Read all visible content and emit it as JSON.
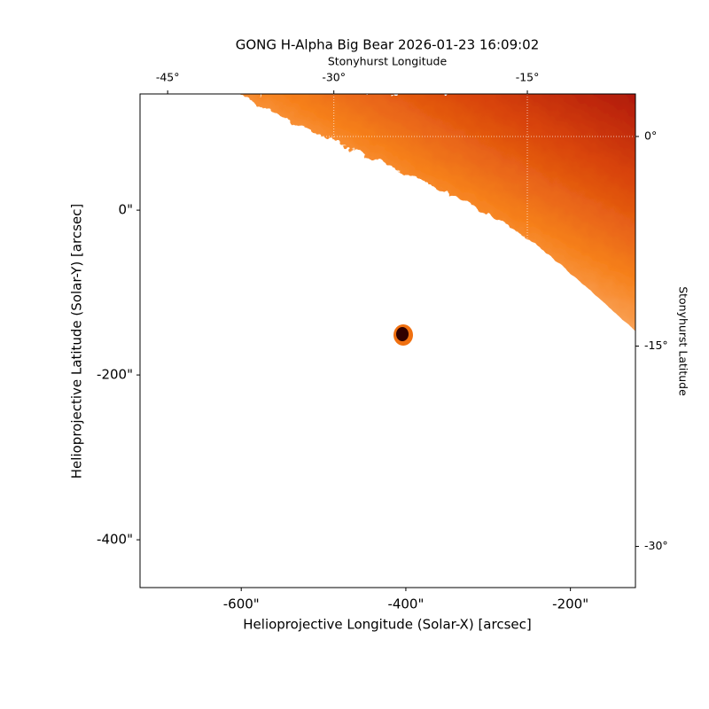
{
  "chart_data": {
    "type": "image",
    "title": "GONG H-Alpha Big Bear 2026-01-23 16:09:02",
    "xlabel": "Helioprojective Longitude (Solar-X) [arcsec]",
    "ylabel": "Helioprojective Latitude (Solar-Y) [arcsec]",
    "x2label": "Stonyhurst Longitude",
    "y2label": "Stonyhurst Latitude",
    "xlim": [
      -723,
      -121
    ],
    "ylim": [
      -458,
      141
    ],
    "xticks": [
      {
        "value": -600,
        "label": "-600\""
      },
      {
        "value": -400,
        "label": "-400\""
      },
      {
        "value": -200,
        "label": "-200\""
      }
    ],
    "yticks": [
      {
        "value": 0,
        "label": "0\""
      },
      {
        "value": -200,
        "label": "-200\""
      },
      {
        "value": -400,
        "label": "-400\""
      }
    ],
    "x2ticks": [
      {
        "value": -45,
        "label": "-45°"
      },
      {
        "value": -30,
        "label": "-30°"
      },
      {
        "value": -15,
        "label": "-15°"
      }
    ],
    "y2ticks": [
      {
        "value": 0,
        "label": "0°"
      },
      {
        "value": -15,
        "label": "-15°"
      },
      {
        "value": -30,
        "label": "-30°"
      }
    ],
    "grid": true
  }
}
